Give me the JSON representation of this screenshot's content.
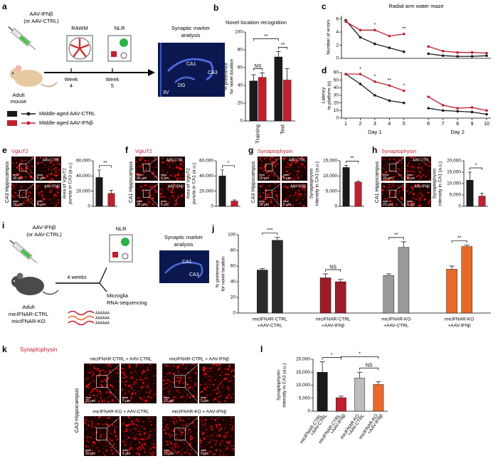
{
  "panel_labels": [
    "a",
    "b",
    "c",
    "d",
    "e",
    "f",
    "g",
    "h",
    "i",
    "j",
    "k",
    "l"
  ],
  "schematic_a": {
    "injection": [
      "AAV-IFNβ",
      "(or AAV-CTRL)"
    ],
    "animal": [
      "Adult",
      "mouse"
    ],
    "tests": [
      "RAWM",
      "NLR"
    ],
    "weeks": [
      [
        "Week",
        "4"
      ],
      [
        "Week",
        "5"
      ]
    ],
    "analysis": [
      "Synaptic marker",
      "analysis"
    ],
    "regions": [
      "CA1",
      "CA3",
      "DG",
      "3V"
    ]
  },
  "schematic_i": {
    "injection": [
      "AAV-IFNβ",
      "(or AAV-CTRL)"
    ],
    "animal": [
      "Adult",
      "micIFNAR-CTRL",
      "micIFNAR-KO"
    ],
    "test": "NLR",
    "interval": "4 weeks",
    "sequencing": [
      "Microglia",
      "RNA-sequencing"
    ],
    "poly_a": "AAAAAA",
    "analysis": [
      "Synaptic marker",
      "analysis"
    ],
    "regions": [
      "CA1",
      "CA3"
    ]
  },
  "micrographs": [
    {
      "marker": "VgluT2",
      "region": "CA3 Hippocampus",
      "conditions": [
        "AAV-CTRL",
        "AAV-IFNβ"
      ],
      "scale_bars": [
        "20 µm",
        "5 µm"
      ]
    },
    {
      "marker": "VgluT2",
      "region": "CA1 Hippocampus",
      "conditions": [
        "AAV-CTRL",
        "AAV-IFNβ"
      ],
      "scale_bars": [
        "20 µm",
        "5 µm"
      ]
    },
    {
      "marker": "Synaptophysin",
      "region": "CA3 Hippocampus",
      "conditions": [
        "AAV-CTRL",
        "AAV-IFNβ"
      ],
      "scale_bars": [
        "20 µm",
        "5 µm"
      ]
    },
    {
      "marker": "Synaptophysin",
      "region": "CA1 Hippocampus",
      "conditions": [
        "AAV-CTRL",
        "AAV-IFNβ"
      ],
      "scale_bars": [
        "20 µm",
        "5 µm"
      ]
    }
  ],
  "panel_k": {
    "marker": "Synaptophysin",
    "region": "CA3 Hippocampus",
    "conditions": [
      "micIFNAR-CTRL + AAV-CTRL",
      "micIFNAR-CTRL + AAV-IFNβ",
      "micIFNAR-KO + AAV-CTRL",
      "micIFNAR-KO + AAV-IFNβ"
    ],
    "scale_bars": [
      "20 µm",
      "5 µm"
    ]
  },
  "chart_data": [
    {
      "type": "grouped_bar",
      "title": "Novel location recognition",
      "y_label": [
        "% preference",
        "for novel location"
      ],
      "categories": [
        "Training",
        "Test"
      ],
      "series": [
        {
          "name": "Middle-aged AAV-CTRL",
          "color": "#1a1a1a",
          "values": [
            45,
            72
          ],
          "errors": [
            7,
            6
          ]
        },
        {
          "name": "Middle-aged AAV-IFNβ",
          "color": "#c0202e",
          "values": [
            49,
            46
          ],
          "errors": [
            5,
            13
          ]
        }
      ],
      "ylim": [
        0,
        100
      ],
      "yticks": [
        0,
        20,
        40,
        60,
        80,
        100
      ],
      "annotations": [
        "NS",
        "**",
        "**"
      ]
    },
    {
      "type": "line",
      "title": "Radial arm water maze",
      "y_label": [
        "Number of errors"
      ],
      "x": [
        1,
        2,
        3,
        4,
        5,
        6,
        7,
        8,
        9,
        10
      ],
      "series": [
        {
          "color": "#1a1a1a",
          "values": [
            5.8,
            3.2,
            2.2,
            1.6,
            1.0,
            0.7,
            0.4,
            0.3,
            0.3,
            0.4
          ]
        },
        {
          "color": "#c0202e",
          "values": [
            5.6,
            4.3,
            4.3,
            3.4,
            3.7,
            1.8,
            1.1,
            0.9,
            0.9,
            0.8
          ]
        }
      ],
      "ylim": [
        0,
        6.5
      ],
      "yticks": [
        0,
        2,
        4,
        6
      ],
      "annotations": [
        "*",
        "**"
      ]
    },
    {
      "type": "line",
      "y_label": [
        "Latency",
        "to platform (s)"
      ],
      "x": [
        1,
        2,
        3,
        4,
        5,
        6,
        7,
        8,
        9,
        10
      ],
      "xticks": [
        1,
        2,
        3,
        4,
        5,
        6,
        7,
        8,
        9,
        10
      ],
      "x_groups": [
        "Day 1",
        "Day 2"
      ],
      "series": [
        {
          "color": "#1a1a1a",
          "values": [
            58,
            45,
            30,
            23,
            20,
            13,
            10,
            9,
            8,
            5
          ]
        },
        {
          "color": "#c0202e",
          "values": [
            58,
            58,
            48,
            43,
            36,
            28,
            17,
            13,
            14,
            10
          ]
        }
      ],
      "ylim": [
        0,
        60
      ],
      "yticks": [
        0,
        10,
        20,
        30,
        40,
        50,
        60
      ],
      "annotations": [
        "*",
        "*",
        "**",
        "*"
      ]
    },
    {
      "type": "bar",
      "y_label": [
        "Area of VgluT2",
        "puncta in CA3 (a.u.)"
      ],
      "values": [
        38000,
        17000
      ],
      "errors": [
        10000,
        4000
      ],
      "colors": [
        "#1a1a1a",
        "#c0202e"
      ],
      "ylim": [
        0,
        60000
      ],
      "yticks": [
        0,
        {
          "value": 20000,
          "label": "20,000"
        },
        {
          "value": 40000,
          "label": "40,000"
        },
        {
          "value": 60000,
          "label": "60,000"
        }
      ],
      "annotations": [
        "**"
      ]
    },
    {
      "type": "bar",
      "y_label": [
        "Area of VgluT2",
        "puncta in CA1 (a.u.)"
      ],
      "values": [
        40000,
        7000
      ],
      "errors": [
        8000,
        1500
      ],
      "colors": [
        "#1a1a1a",
        "#c0202e"
      ],
      "ylim": [
        0,
        60000
      ],
      "yticks": [
        0,
        {
          "value": 20000,
          "label": "20,000"
        },
        {
          "value": 40000,
          "label": "40,000"
        },
        {
          "value": 60000,
          "label": "60,000"
        }
      ],
      "annotations": [
        "*"
      ]
    },
    {
      "type": "bar",
      "y_label": [
        "Synaptophysin",
        "intensity in CA3 (a.u.)"
      ],
      "values": [
        12800,
        8000
      ],
      "errors": [
        700,
        300
      ],
      "colors": [
        "#1a1a1a",
        "#c0202e"
      ],
      "ylim": [
        0,
        15000
      ],
      "yticks": [
        0,
        {
          "value": 5000,
          "label": "5,000"
        },
        {
          "value": 10000,
          "label": "10,000"
        },
        {
          "value": 15000,
          "label": "15,000"
        }
      ],
      "annotations": [
        "**"
      ]
    },
    {
      "type": "bar",
      "y_label": [
        "Synaptophysin",
        "intensity in CA1 (a.u.)"
      ],
      "values": [
        11500,
        4500
      ],
      "errors": [
        3500,
        1200
      ],
      "colors": [
        "#1a1a1a",
        "#c0202e"
      ],
      "ylim": [
        0,
        20000
      ],
      "yticks": [
        0,
        {
          "value": 5000,
          "label": "5,000"
        },
        {
          "value": 10000,
          "label": "10,000"
        },
        {
          "value": 15000,
          "label": "15,000"
        },
        {
          "value": 20000,
          "label": "20,000"
        }
      ],
      "annotations": [
        "*"
      ]
    },
    {
      "type": "paired_bar",
      "y_label": [
        "% preference",
        "for novel location"
      ],
      "groups": [
        {
          "label": [
            "micIFNAR-CTRL",
            "+AAV-CTRL"
          ],
          "color": "#2a2a2a",
          "values": [
            55,
            93
          ],
          "errors": [
            2,
            4
          ]
        },
        {
          "label": [
            "micIFNAR-CTRL",
            "+AAV-IFNβ"
          ],
          "color": "#9c1c28",
          "values": [
            45,
            40
          ],
          "errors": [
            5,
            3
          ]
        },
        {
          "label": [
            "micIFNAR-KO",
            "+AAV-CTRL"
          ],
          "color": "#9a9a9a",
          "values": [
            48,
            84
          ],
          "errors": [
            2,
            7
          ]
        },
        {
          "label": [
            "micIFNAR-KO",
            "+AAV-IFNβ"
          ],
          "color": "#e86a2a",
          "values": [
            56,
            85
          ],
          "errors": [
            4,
            2
          ]
        }
      ],
      "ylim": [
        0,
        100
      ],
      "yticks": [
        0,
        20,
        40,
        60,
        80,
        100
      ],
      "annotations": [
        "***",
        "NS",
        "**",
        "**"
      ]
    },
    {
      "type": "bar",
      "y_label": [
        "Synaptophysin",
        "intensity in CA3 (a.u.)"
      ],
      "categories": [
        [
          "micIFNAR-CTRL",
          "+AAV-CTRL"
        ],
        [
          "micIFNAR-CTRL",
          "+AAV-IFNβ"
        ],
        [
          "micIFNAR-KO",
          "+AAV-CTRL"
        ],
        [
          "micIFNAR-KO",
          "+AAV-IFNβ"
        ]
      ],
      "values": [
        15000,
        5200,
        12800,
        10300
      ],
      "errors": [
        4000,
        600,
        2200,
        1000
      ],
      "colors": [
        "#1a1a1a",
        "#c0202e",
        "#bdbdbd",
        "#e8692a"
      ],
      "ylim": [
        0,
        20000
      ],
      "yticks": [
        0,
        {
          "value": 5000,
          "label": "5,000"
        },
        {
          "value": 10000,
          "label": "10,000"
        },
        {
          "value": 15000,
          "label": "15,000"
        },
        {
          "value": 20000,
          "label": "20,000"
        }
      ],
      "annotations": [
        "*",
        "*",
        "NS"
      ]
    }
  ]
}
